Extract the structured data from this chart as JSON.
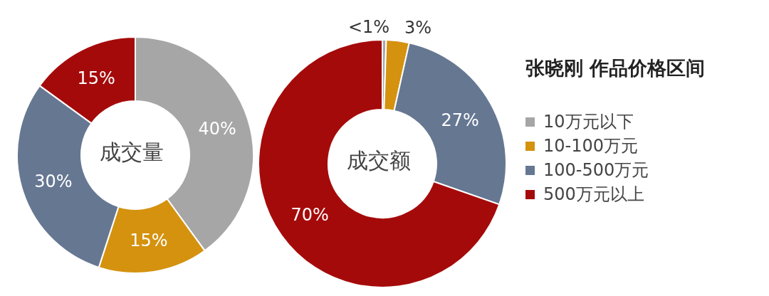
{
  "chart_data": [
    {
      "type": "donut",
      "categories": [
        null,
        null,
        null,
        null
      ],
      "values": [
        40,
        15,
        30,
        15
      ],
      "value_labels": [
        "40%",
        "15%",
        "30%",
        "15%"
      ],
      "colors": [
        "#a6a6a6",
        "#d4920f",
        "#667792",
        "#a50a0a"
      ],
      "annotations": [
        "成交量"
      ]
    },
    {
      "type": "donut",
      "title": "张晓刚 作品价格区间",
      "categories": [
        "10万元以下",
        "10-100万元",
        "100-500万元",
        "500万元以上"
      ],
      "values": [
        0.5,
        3,
        27,
        70
      ],
      "value_labels": [
        "<1%",
        "3%",
        "27%",
        "70%"
      ],
      "colors": [
        "#a6a6a6",
        "#d4920f",
        "#667792",
        "#a50a0a"
      ],
      "annotations": [
        "成交额"
      ],
      "legend": "right"
    }
  ]
}
